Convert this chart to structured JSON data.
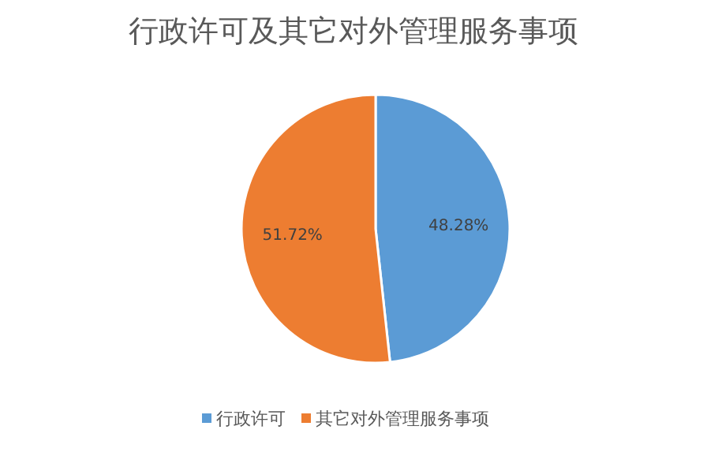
{
  "chart_data": {
    "type": "pie",
    "title": "行政许可及其它对外管理服务事项",
    "categories": [
      "行政许可",
      "其它对外管理服务事项"
    ],
    "values": [
      48.28,
      51.72
    ],
    "value_labels": [
      "48.28%",
      "51.72%"
    ],
    "colors": [
      "#5b9bd5",
      "#ed7d31"
    ],
    "legend": "bottom"
  }
}
